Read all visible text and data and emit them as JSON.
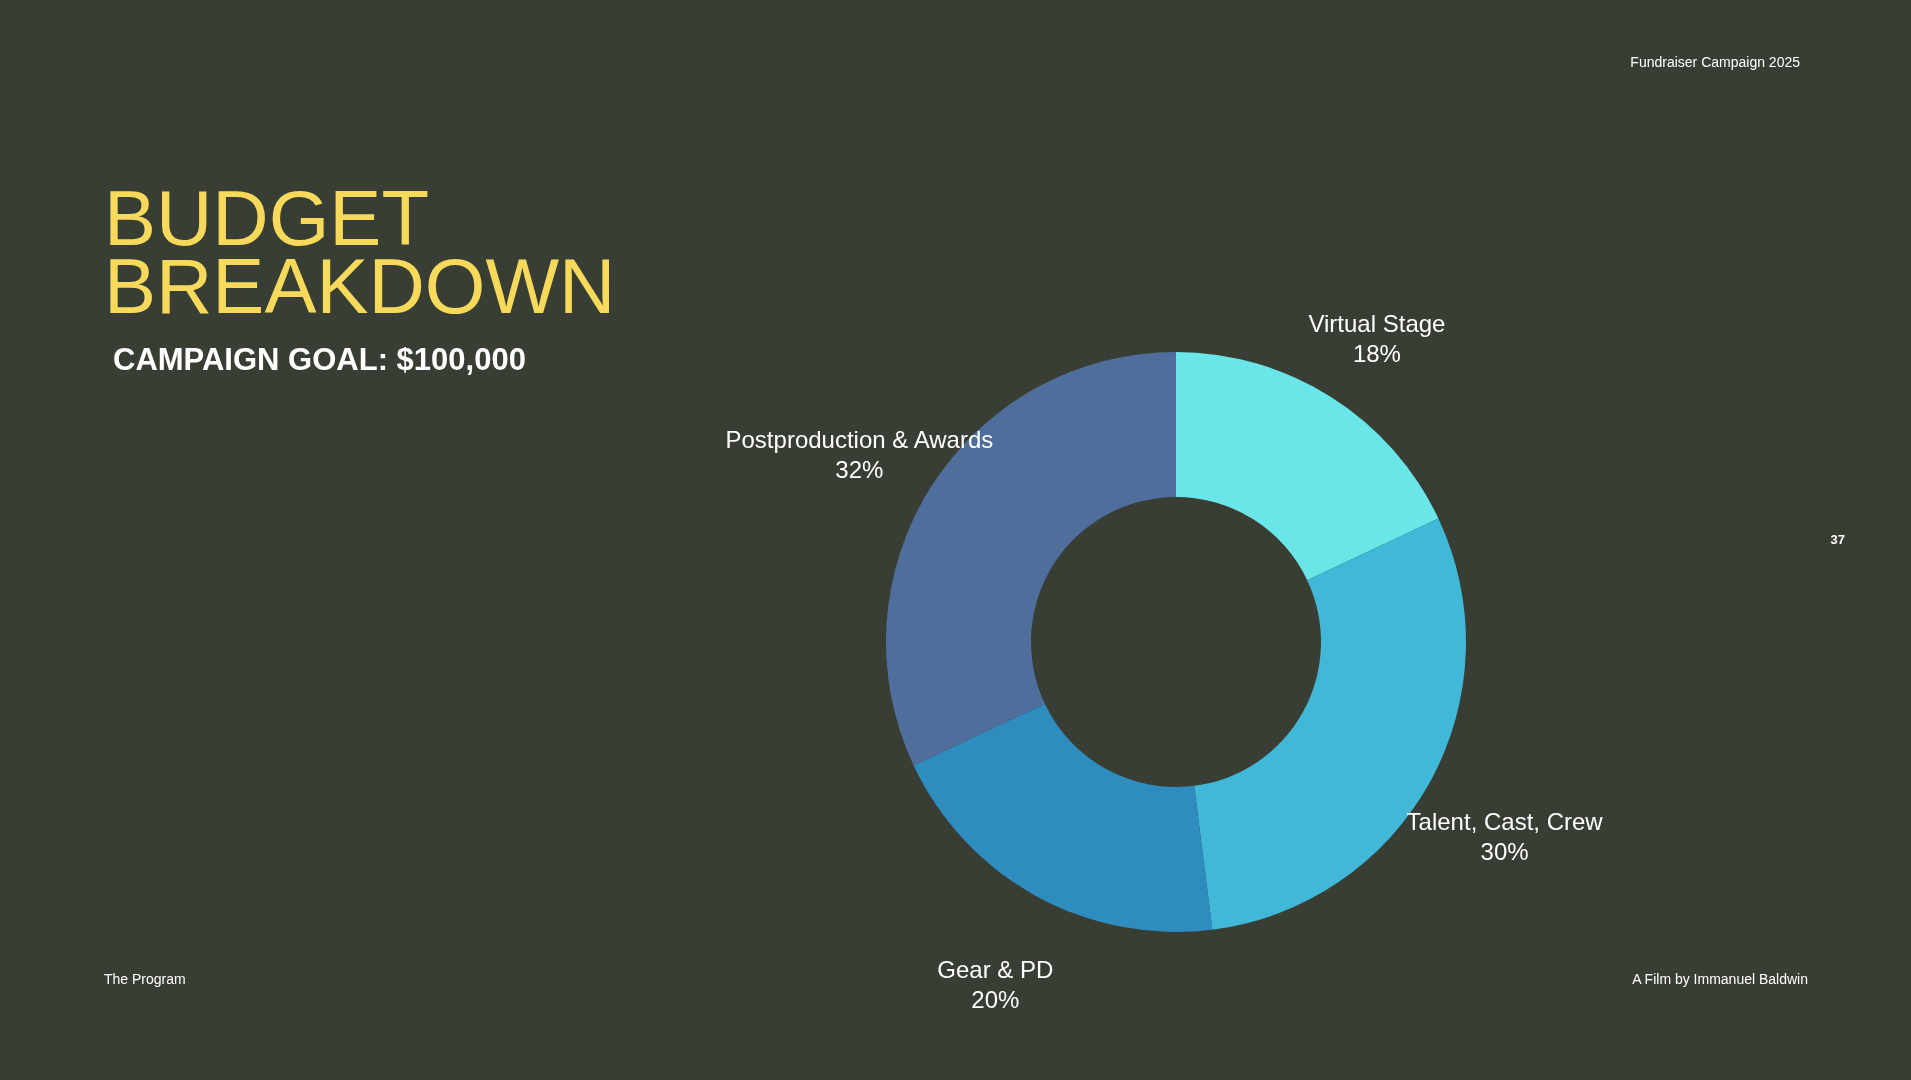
{
  "chart_data": {
    "type": "donut",
    "title": "BUDGET BREAKDOWN",
    "subtitle": "CAMPAIGN GOAL: $100,000",
    "categories": [
      "Virtual Stage",
      "Talent, Cast, Crew",
      "Gear & PD",
      "Postproduction & Awards"
    ],
    "values": [
      18,
      30,
      20,
      32
    ],
    "value_labels": [
      "18%",
      "30%",
      "20%",
      "32%"
    ],
    "colors": [
      "#6ae6e8",
      "#42b8d8",
      "#2e8cbf",
      "#4f6e9c"
    ],
    "annotations": [
      "Fundraiser Campaign 2025",
      "37",
      "The Program",
      "A Film by Immanuel Baldwin"
    ]
  }
}
